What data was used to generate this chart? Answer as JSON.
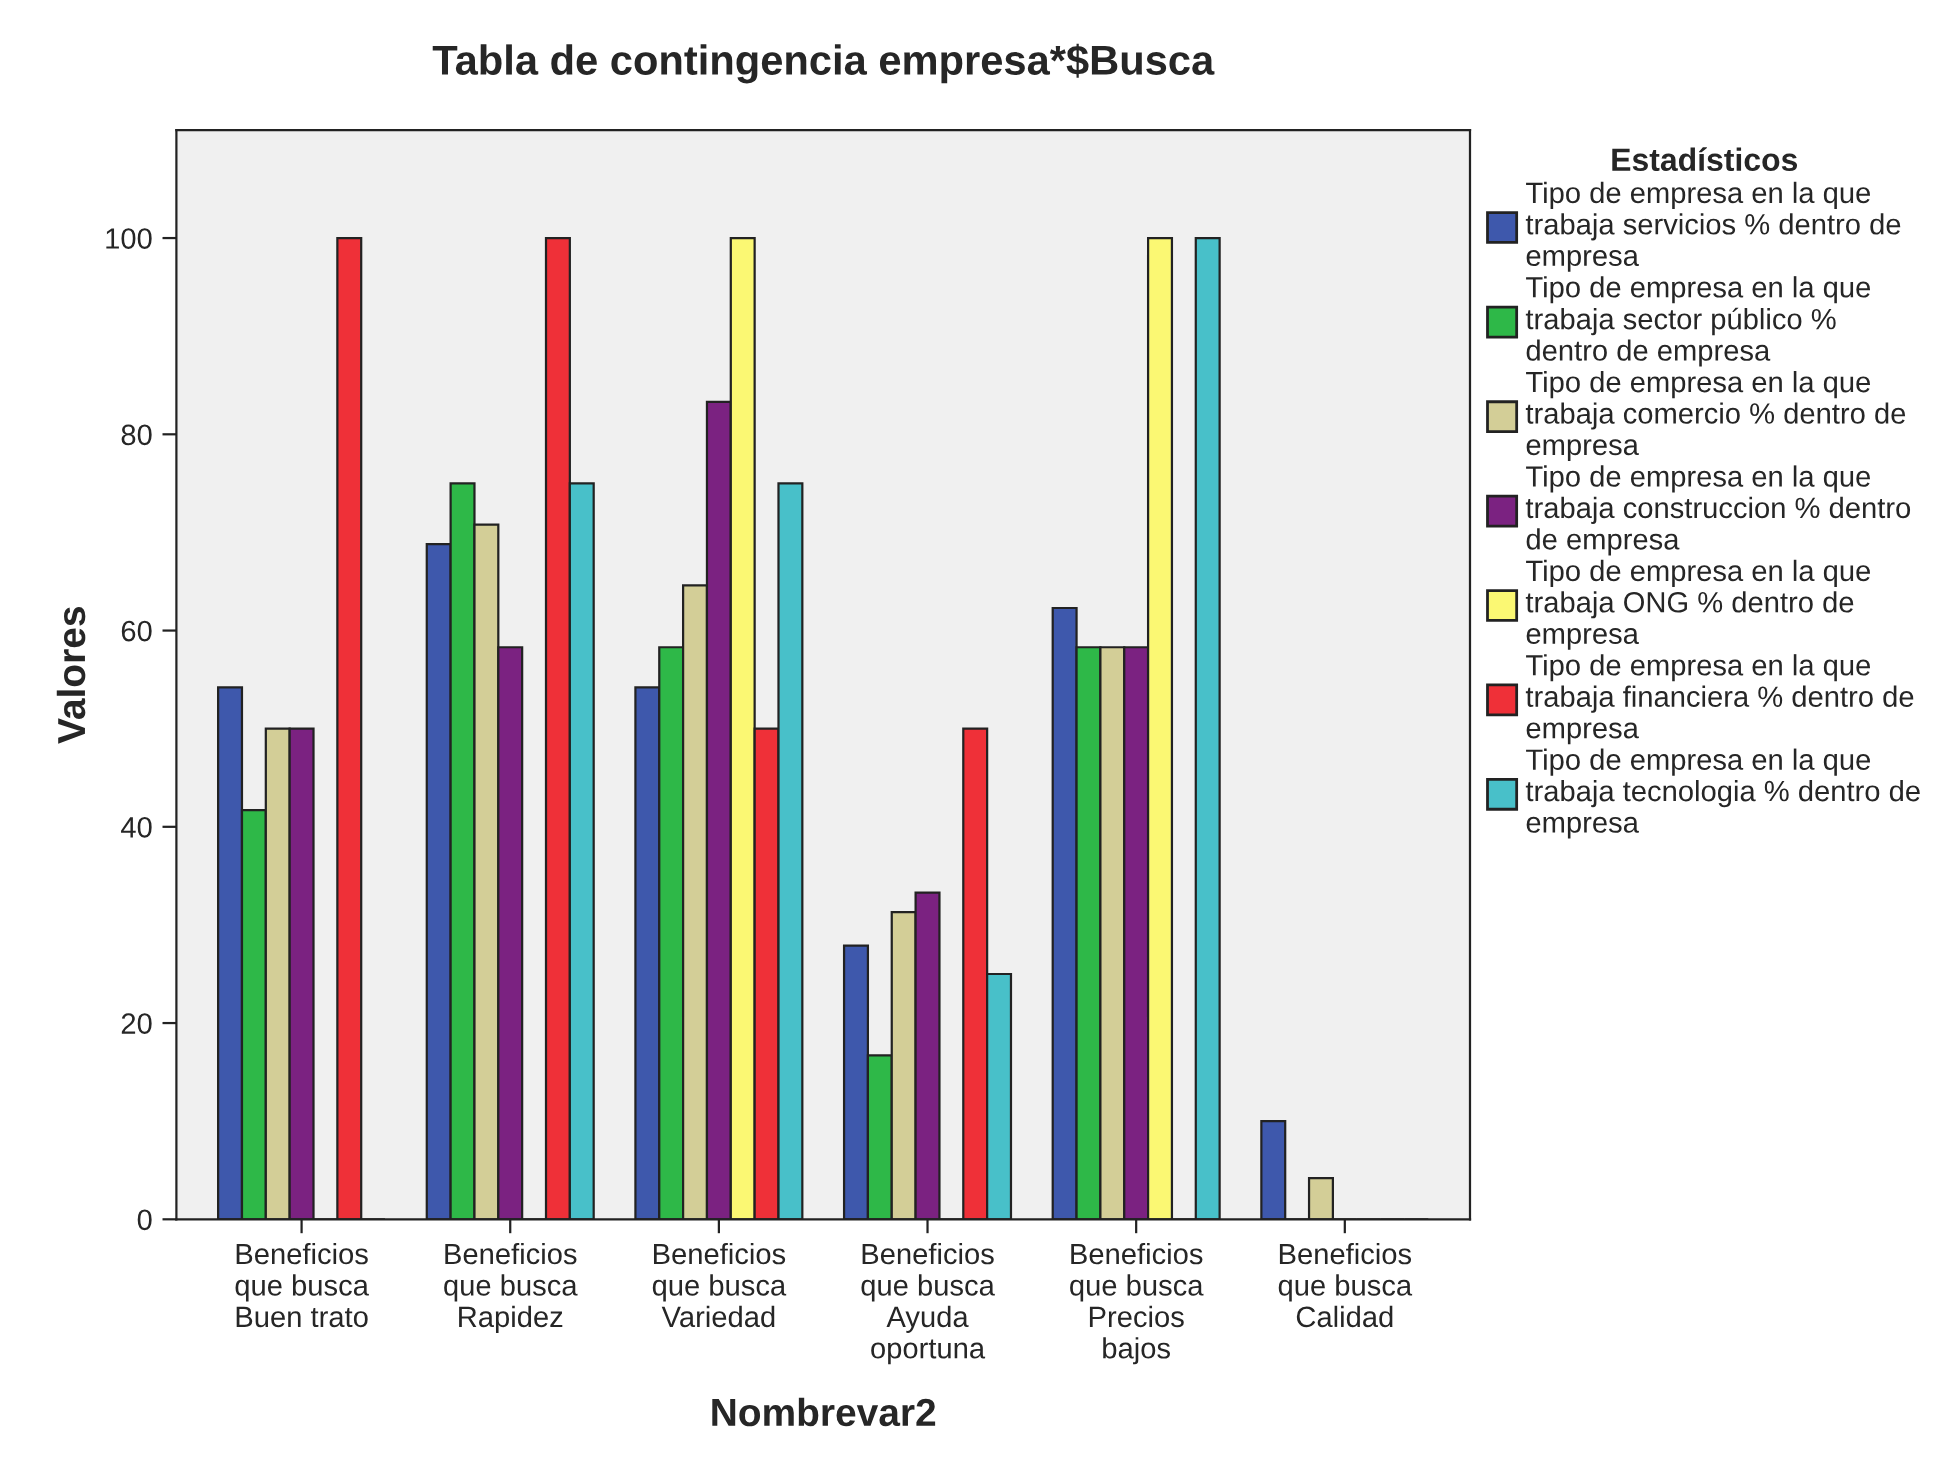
{
  "chart_data": {
    "type": "bar",
    "title": "Tabla de contingencia empresa*$Busca",
    "xlabel": "Nombrevar2",
    "ylabel": "Valores",
    "legend_title": "Estadísticos",
    "categories": [
      "Beneficios que busca Buen trato",
      "Beneficios que busca Rapidez",
      "Beneficios que busca Variedad",
      "Beneficios que busca Ayuda oportuna",
      "Beneficios que busca Precios bajos",
      "Beneficios que busca Calidad"
    ],
    "series": [
      {
        "name": "Tipo de empresa en la que trabaja servicios % dentro de empresa",
        "color": "#3e58ac",
        "values": [
          54.2,
          68.8,
          54.2,
          27.9,
          62.3,
          10.0
        ]
      },
      {
        "name": "Tipo de empresa en la que trabaja sector público % dentro de empresa",
        "color": "#2eb848",
        "values": [
          41.7,
          75.0,
          58.3,
          16.7,
          58.3,
          0
        ]
      },
      {
        "name": "Tipo de empresa en la que trabaja comercio % dentro de empresa",
        "color": "#d3ce97",
        "values": [
          50.0,
          70.8,
          64.6,
          31.3,
          58.3,
          4.2
        ]
      },
      {
        "name": "Tipo de empresa en la que trabaja construccion % dentro de empresa",
        "color": "#7b2281",
        "values": [
          50.0,
          58.3,
          83.3,
          33.3,
          58.3,
          0
        ]
      },
      {
        "name": "Tipo de empresa en la que trabaja ONG % dentro de empresa",
        "color": "#fbf873",
        "values": [
          0,
          0,
          100.0,
          0,
          100.0,
          0
        ]
      },
      {
        "name": "Tipo de empresa en la que trabaja financiera % dentro de empresa",
        "color": "#ef3038",
        "values": [
          100.0,
          100.0,
          50.0,
          50.0,
          0,
          0
        ]
      },
      {
        "name": "Tipo de empresa en la que trabaja tecnologia % dentro de empresa",
        "color": "#48c0c9",
        "values": [
          0,
          75.0,
          75.0,
          25.0,
          100.0,
          0
        ]
      }
    ],
    "ylim": [
      0,
      111
    ],
    "yticks": [
      0,
      20,
      40,
      60,
      80,
      100
    ],
    "grid": false,
    "legend": "right"
  }
}
